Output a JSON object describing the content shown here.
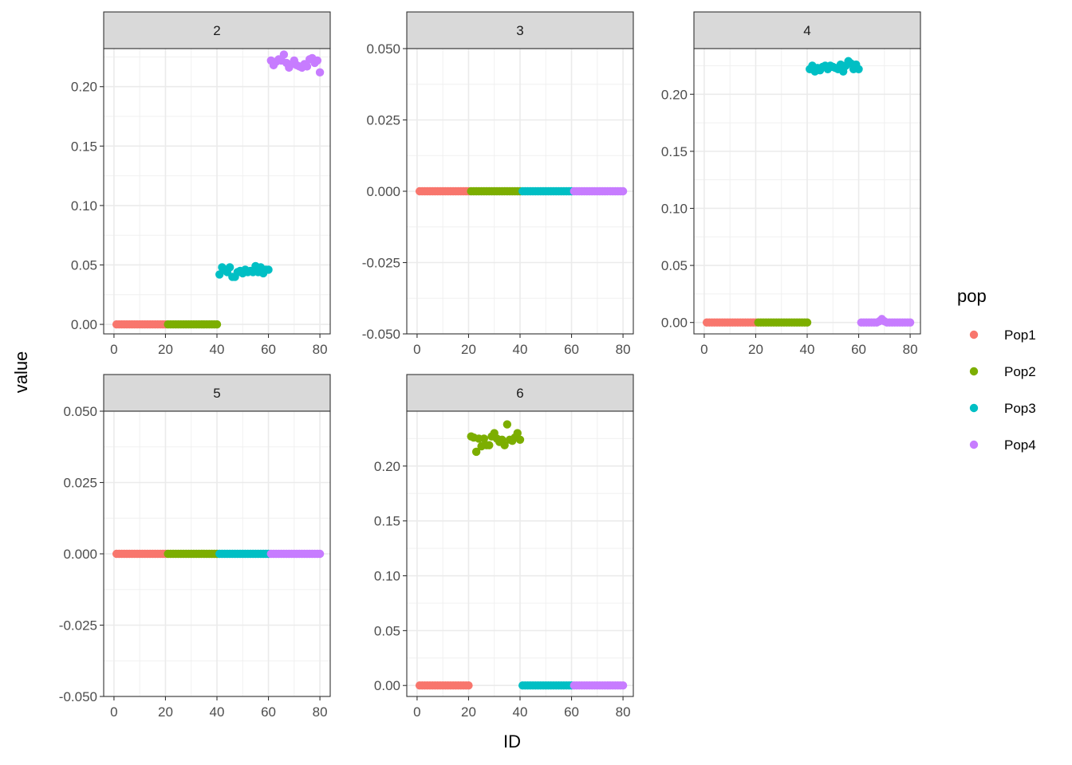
{
  "chart_data": {
    "type": "scatter",
    "xlabel": "ID",
    "ylabel": "value",
    "legend": {
      "title": "pop",
      "position": "right",
      "entries": [
        {
          "name": "Pop1",
          "color": "#F8766D"
        },
        {
          "name": "Pop2",
          "color": "#7CAE00"
        },
        {
          "name": "Pop3",
          "color": "#00BFC4"
        },
        {
          "name": "Pop4",
          "color": "#C77CFF"
        }
      ]
    },
    "xlim": [
      0,
      80
    ],
    "xticks": [
      0,
      20,
      40,
      60,
      80
    ],
    "xtick_labels": [
      "0",
      "20",
      "40",
      "60",
      "80"
    ],
    "panels": [
      {
        "title": "2",
        "ylim": [
          -0.008,
          0.232
        ],
        "yticks": [
          0,
          0.05,
          0.1,
          0.15,
          0.2
        ],
        "ytick_labels": [
          "0.00",
          "0.05",
          "0.10",
          "0.15",
          "0.20"
        ],
        "series": [
          {
            "name": "Pop1",
            "ids": [
              1,
              20
            ],
            "values": [
              0,
              0
            ]
          },
          {
            "name": "Pop2",
            "ids": [
              21,
              40
            ],
            "values": [
              0,
              0
            ]
          },
          {
            "name": "Pop3",
            "ids": [
              41,
              60
            ],
            "values": [
              0.042,
              0.048,
              0.046,
              0.044,
              0.048,
              0.04,
              0.04,
              0.044,
              0.045,
              0.043,
              0.046,
              0.044,
              0.045,
              0.044,
              0.049,
              0.044,
              0.048,
              0.043,
              0.046,
              0.046
            ]
          },
          {
            "name": "Pop4",
            "ids": [
              61,
              80
            ],
            "values": [
              0.222,
              0.218,
              0.221,
              0.223,
              0.222,
              0.227,
              0.22,
              0.216,
              0.219,
              0.222,
              0.218,
              0.217,
              0.216,
              0.219,
              0.217,
              0.223,
              0.224,
              0.22,
              0.222,
              0.212
            ]
          }
        ]
      },
      {
        "title": "3",
        "ylim": [
          -0.05,
          0.05
        ],
        "yticks": [
          -0.05,
          -0.025,
          0,
          0.025,
          0.05
        ],
        "ytick_labels": [
          "-0.050",
          "-0.025",
          "0.000",
          "0.025",
          "0.050"
        ],
        "series": [
          {
            "name": "Pop1",
            "ids": [
              1,
              20
            ],
            "values": [
              0,
              0
            ]
          },
          {
            "name": "Pop2",
            "ids": [
              21,
              40
            ],
            "values": [
              0,
              0
            ]
          },
          {
            "name": "Pop3",
            "ids": [
              41,
              60
            ],
            "values": [
              0,
              0
            ]
          },
          {
            "name": "Pop4",
            "ids": [
              61,
              80
            ],
            "values": [
              0,
              0
            ]
          }
        ]
      },
      {
        "title": "4",
        "ylim": [
          -0.01,
          0.24
        ],
        "yticks": [
          0,
          0.05,
          0.1,
          0.15,
          0.2
        ],
        "ytick_labels": [
          "0.00",
          "0.05",
          "0.10",
          "0.15",
          "0.20"
        ],
        "series": [
          {
            "name": "Pop1",
            "ids": [
              1,
              20
            ],
            "values": [
              0,
              0
            ]
          },
          {
            "name": "Pop2",
            "ids": [
              21,
              40
            ],
            "values": [
              0,
              0
            ]
          },
          {
            "name": "Pop3",
            "ids": [
              41,
              60
            ],
            "values": [
              0.222,
              0.225,
              0.22,
              0.223,
              0.221,
              0.224,
              0.225,
              0.222,
              0.225,
              0.224,
              0.223,
              0.222,
              0.226,
              0.22,
              0.225,
              0.229,
              0.227,
              0.222,
              0.226,
              0.222
            ]
          },
          {
            "name": "Pop4",
            "ids": [
              61,
              80
            ],
            "values": [
              0,
              0,
              0,
              0,
              0,
              0,
              0,
              0.001,
              0.003,
              0.001,
              0,
              0,
              0,
              0,
              0,
              0,
              0,
              0,
              0,
              0
            ]
          }
        ]
      },
      {
        "title": "5",
        "ylim": [
          -0.05,
          0.05
        ],
        "yticks": [
          -0.05,
          -0.025,
          0,
          0.025,
          0.05
        ],
        "ytick_labels": [
          "-0.050",
          "-0.025",
          "0.000",
          "0.025",
          "0.050"
        ],
        "series": [
          {
            "name": "Pop1",
            "ids": [
              1,
              20
            ],
            "values": [
              0,
              0
            ]
          },
          {
            "name": "Pop2",
            "ids": [
              21,
              40
            ],
            "values": [
              0,
              0
            ]
          },
          {
            "name": "Pop3",
            "ids": [
              41,
              60
            ],
            "values": [
              0,
              0
            ]
          },
          {
            "name": "Pop4",
            "ids": [
              61,
              80
            ],
            "values": [
              0,
              0
            ]
          }
        ]
      },
      {
        "title": "6",
        "ylim": [
          -0.01,
          0.25
        ],
        "yticks": [
          0,
          0.05,
          0.1,
          0.15,
          0.2
        ],
        "ytick_labels": [
          "0.00",
          "0.05",
          "0.10",
          "0.15",
          "0.20"
        ],
        "series": [
          {
            "name": "Pop1",
            "ids": [
              1,
              20
            ],
            "values": [
              0,
              0
            ]
          },
          {
            "name": "Pop2",
            "ids": [
              21,
              40
            ],
            "values": [
              0.227,
              0.226,
              0.213,
              0.225,
              0.218,
              0.225,
              0.219,
              0.219,
              0.227,
              0.23,
              0.225,
              0.222,
              0.224,
              0.219,
              0.238,
              0.224,
              0.223,
              0.226,
              0.23,
              0.224
            ]
          },
          {
            "name": "Pop3",
            "ids": [
              41,
              60
            ],
            "values": [
              0,
              0
            ]
          },
          {
            "name": "Pop4",
            "ids": [
              61,
              80
            ],
            "values": [
              0,
              0
            ]
          }
        ]
      }
    ]
  }
}
